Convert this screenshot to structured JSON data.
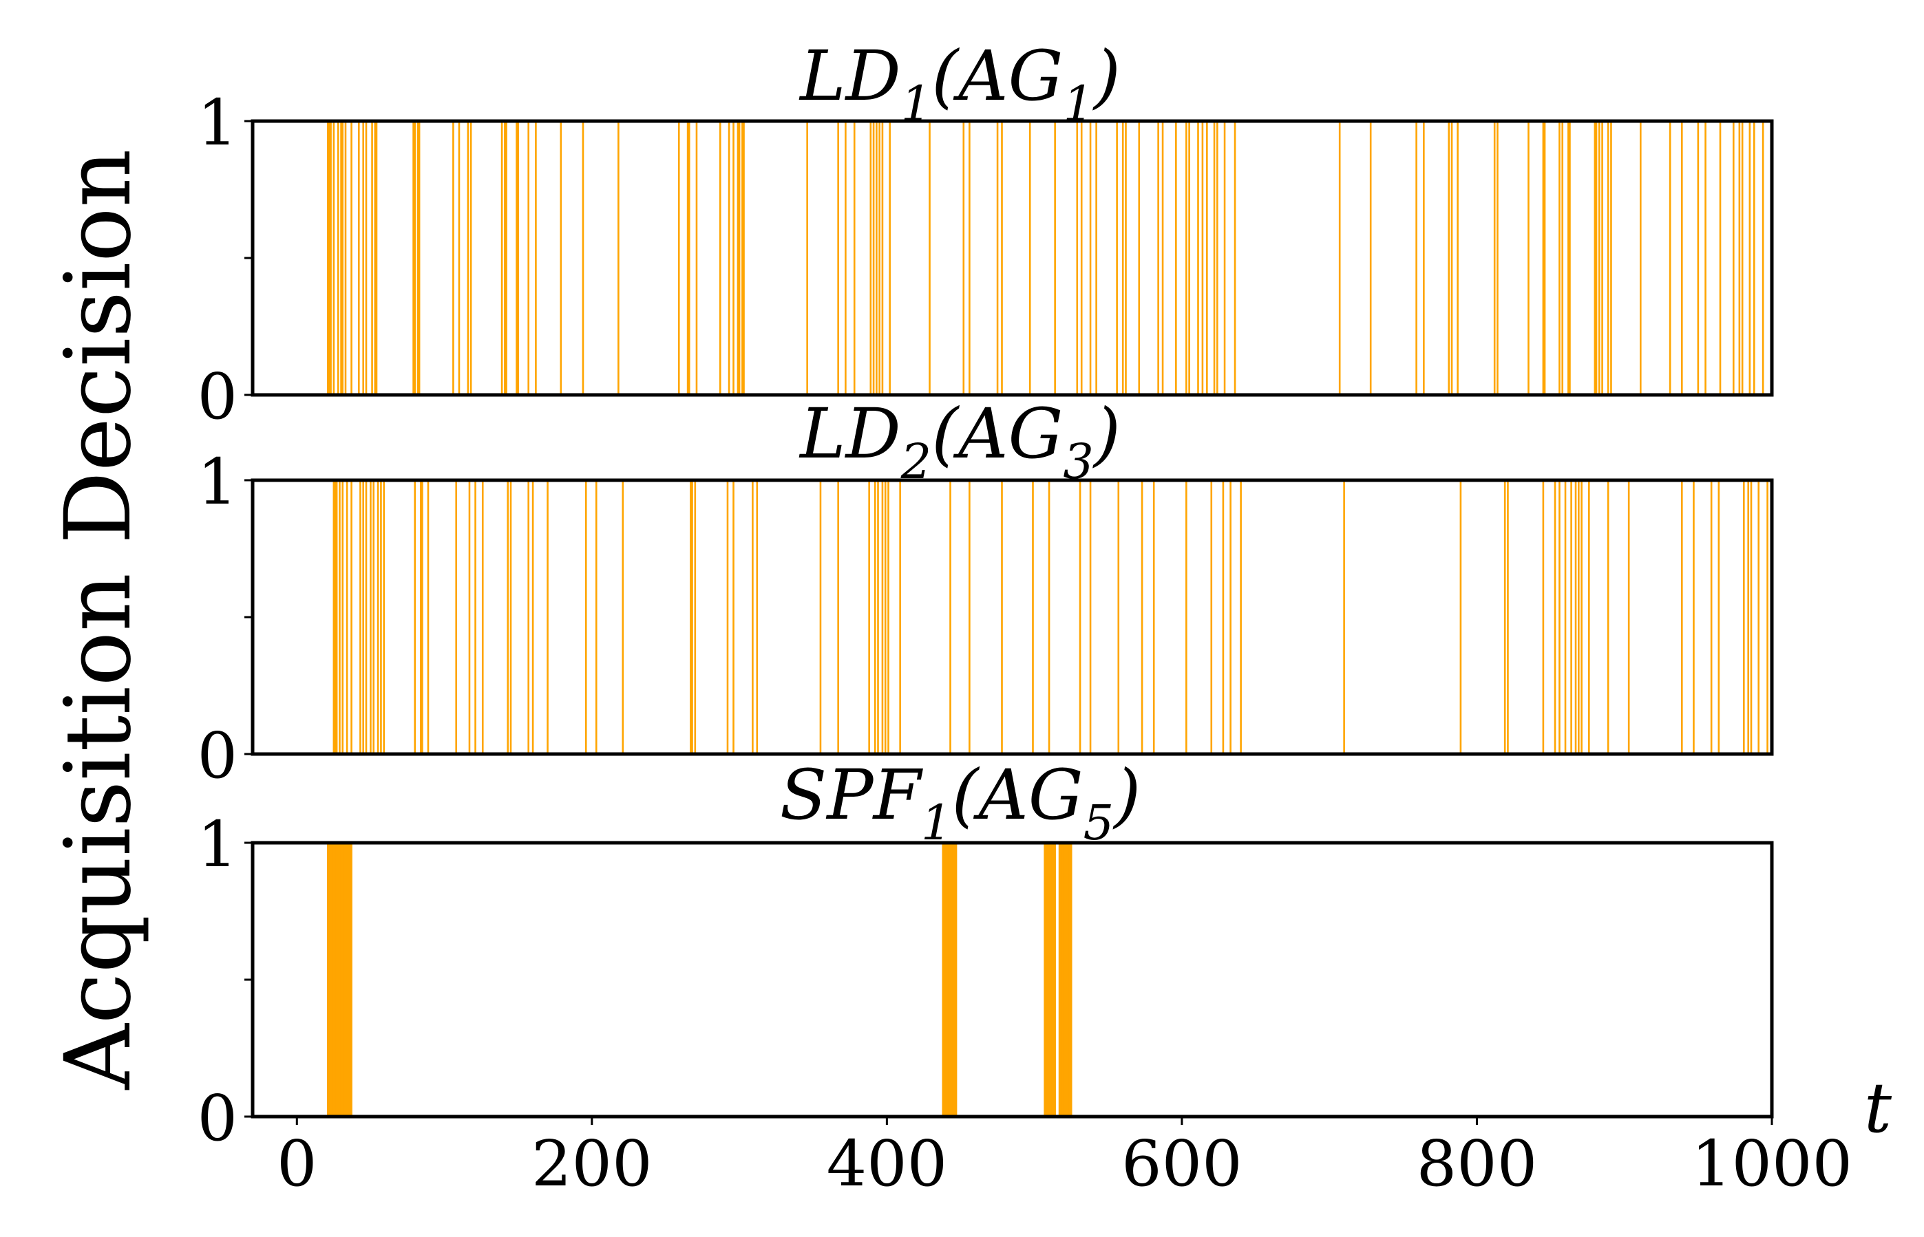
{
  "chart_data": {
    "type": "bar",
    "ylabel": "Acquisition Decision",
    "xlabel": "t",
    "xlim": [
      -30,
      1000
    ],
    "ylim": [
      0,
      1
    ],
    "x_ticks": [
      "0",
      "200",
      "400",
      "600",
      "800",
      "1000"
    ],
    "y_ticks": [
      "0",
      "1"
    ],
    "bar_color": "#FFA500",
    "panels": [
      {
        "title": "LD1(AG1)",
        "acquisition_times": [
          21,
          22,
          23,
          25,
          28,
          30,
          31,
          33,
          37,
          42,
          45,
          47,
          51,
          53,
          54,
          79,
          80,
          82,
          83,
          106,
          110,
          116,
          118,
          139,
          141,
          142,
          149,
          150,
          157,
          162,
          179,
          194,
          218,
          259,
          265,
          266,
          271,
          287,
          293,
          296,
          299,
          300,
          302,
          303,
          346,
          367,
          372,
          378,
          389,
          391,
          393,
          395,
          397,
          402,
          429,
          452,
          456,
          475,
          478,
          497,
          514,
          529,
          532,
          538,
          542,
          556,
          560,
          562,
          571,
          584,
          587,
          596,
          603,
          605,
          611,
          614,
          617,
          622,
          624,
          629,
          636,
          707,
          728,
          759,
          764,
          781,
          783,
          787,
          812,
          814,
          835,
          845,
          846,
          856,
          858,
          862,
          863,
          880,
          881,
          883,
          885,
          889,
          891,
          911,
          931,
          939,
          950,
          955,
          965,
          974,
          978,
          980,
          985,
          988,
          994
        ]
      },
      {
        "title": "LD2(AG3)",
        "acquisition_times": [
          25,
          26,
          27,
          29,
          31,
          34,
          37,
          43,
          45,
          47,
          50,
          52,
          55,
          57,
          59,
          80,
          84,
          85,
          89,
          108,
          117,
          121,
          126,
          143,
          145,
          157,
          160,
          170,
          196,
          203,
          221,
          267,
          268,
          270,
          292,
          296,
          309,
          312,
          355,
          367,
          388,
          392,
          394,
          397,
          399,
          401,
          409,
          443,
          456,
          478,
          499,
          510,
          531,
          538,
          557,
          573,
          581,
          603,
          620,
          628,
          633,
          640,
          710,
          789,
          819,
          821,
          845,
          853,
          856,
          860,
          864,
          867,
          869,
          871,
          876,
          889,
          903,
          939,
          947,
          959,
          964,
          981,
          984,
          986,
          991,
          997
        ]
      },
      {
        "title": "SPF1(AG5)",
        "acquisition_times": [
          21,
          22,
          23,
          24,
          25,
          26,
          27,
          28,
          29,
          30,
          31,
          32,
          33,
          34,
          35,
          36,
          37,
          438,
          439,
          440,
          441,
          442,
          443,
          444,
          445,
          446,
          447,
          507,
          508,
          509,
          510,
          511,
          512,
          513,
          514,
          517,
          518,
          519,
          520,
          521,
          522,
          523,
          524,
          525
        ]
      }
    ]
  },
  "titles": {
    "p1": {
      "base": "LD",
      "sub1": "1",
      "mid": "(AG",
      "sub2": "1",
      "end": ")"
    },
    "p2": {
      "base": "LD",
      "sub1": "2",
      "mid": "(AG",
      "sub2": "3",
      "end": ")"
    },
    "p3": {
      "base": "SPF",
      "sub1": "1",
      "mid": "(AG",
      "sub2": "5",
      "end": ")"
    }
  }
}
